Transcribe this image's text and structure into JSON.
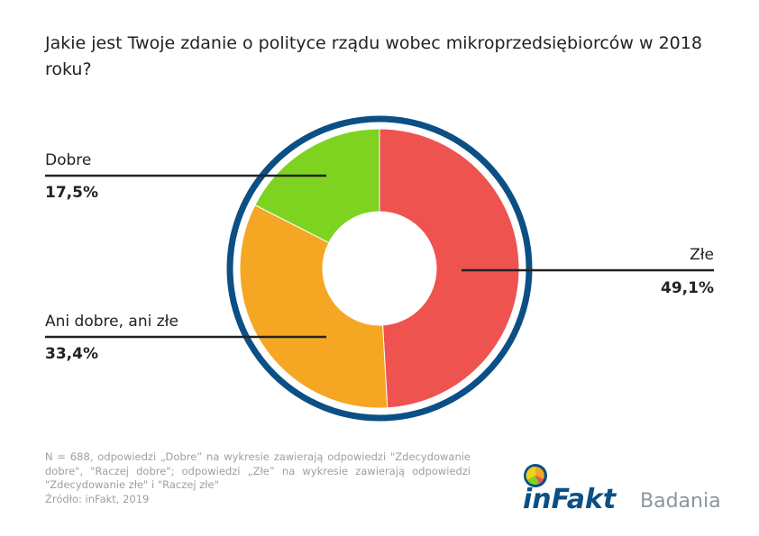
{
  "title": "Jakie jest Twoje zdanie o polityce rządu wobec mikroprzedsiębiorców w 2018 roku?",
  "chart_data": {
    "type": "pie",
    "variant": "donut",
    "title": "Jakie jest Twoje zdanie o polityce rządu wobec mikroprzedsiębiorców w 2018 roku?",
    "slices": [
      {
        "label": "Złe",
        "value": 49.1,
        "display": "49,1%",
        "color": "#ee5350"
      },
      {
        "label": "Ani dobre, ani złe",
        "value": 33.4,
        "display": "33,4%",
        "color": "#f5a623"
      },
      {
        "label": "Dobre",
        "value": 17.5,
        "display": "17,5%",
        "color": "#7ed321"
      }
    ],
    "ring_color": "#0b4f85"
  },
  "footnote": {
    "text": "N = 688, odpowiedzi „Dobre” na wykresie zawierają odpowiedzi \"Zdecydowanie dobre\", \"Raczej dobre\"; odpowiedzi „Złe” na wykresie zawierają odpowiedzi \"Zdecydowanie złe\" i \"Raczej złe\"",
    "source": "Źródło: inFakt, 2019"
  },
  "logo": {
    "brand": "inFakt",
    "suffix": "Badania"
  }
}
